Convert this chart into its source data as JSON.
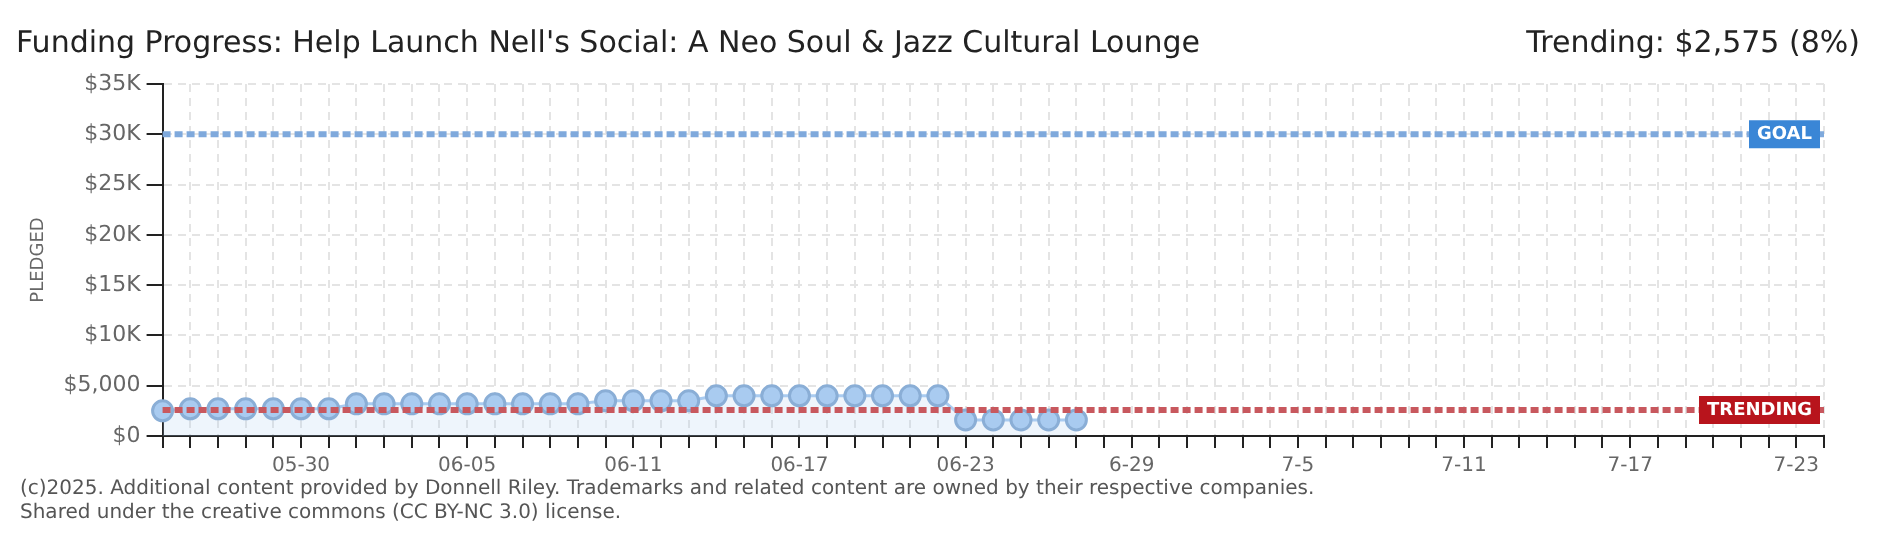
{
  "chart_data": {
    "type": "area",
    "title": "Funding Progress: Help Launch Nell's Social: A Neo Soul & Jazz Cultural Lounge",
    "subtitle": "Trending: $2,575 (8%)",
    "ylabel": "PLEDGED",
    "categories": [
      null,
      null,
      null,
      null,
      null,
      "05-30",
      null,
      null,
      null,
      null,
      null,
      "06-05",
      null,
      null,
      null,
      null,
      null,
      "06-11",
      null,
      null,
      null,
      null,
      null,
      "06-17",
      null,
      null,
      null,
      null,
      null,
      "06-23",
      null,
      null,
      null,
      null,
      null,
      "6-29",
      null,
      null,
      null,
      null,
      null,
      "7-5",
      null,
      null,
      null,
      null,
      null,
      "7-11",
      null,
      null,
      null,
      null,
      null,
      "7-17",
      null,
      null,
      null,
      null,
      null,
      "7-23",
      null
    ],
    "series": [
      {
        "color": "#a9cbf0",
        "values": [
          2500,
          2700,
          2700,
          2700,
          2700,
          2700,
          2700,
          3200,
          3200,
          3200,
          3200,
          3200,
          3200,
          3200,
          3200,
          3200,
          3500,
          3500,
          3500,
          3500,
          4000,
          4000,
          4000,
          4000,
          4000,
          4000,
          4000,
          4000,
          4000,
          1600,
          1600,
          1600,
          1600,
          1600,
          null,
          null,
          null,
          null,
          null,
          null,
          null,
          null,
          null,
          null,
          null,
          null,
          null,
          null,
          null,
          null,
          null,
          null,
          null,
          null,
          null,
          null,
          null,
          null,
          null,
          null,
          null
        ]
      }
    ],
    "ylim": [
      0,
      35000
    ],
    "yticks": [
      {
        "value": 0,
        "label": "$0"
      },
      {
        "value": 5000,
        "label": "$5,000"
      },
      {
        "value": 10000,
        "label": "$10K"
      },
      {
        "value": 15000,
        "label": "$15K"
      },
      {
        "value": 20000,
        "label": "$20K"
      },
      {
        "value": 25000,
        "label": "$25K"
      },
      {
        "value": 30000,
        "label": "$30K"
      },
      {
        "value": 35000,
        "label": "$35K"
      }
    ],
    "ref_lines": [
      {
        "axis": "y",
        "value": 30000,
        "label": "GOAL",
        "color": "#7fa9dc",
        "line_style": "dashed"
      },
      {
        "axis": "y",
        "value": 2575,
        "label": "TRENDING",
        "color": "#c8585e",
        "line_style": "dashed"
      }
    ],
    "annotations": [
      "(c)2025. Additional content provided by Donnell Riley. Trademarks and related content are owned by their respective companies.",
      "Shared under the creative commons (CC BY-NC 3.0) license."
    ],
    "grid": true,
    "marker": "circle",
    "legend": false
  }
}
